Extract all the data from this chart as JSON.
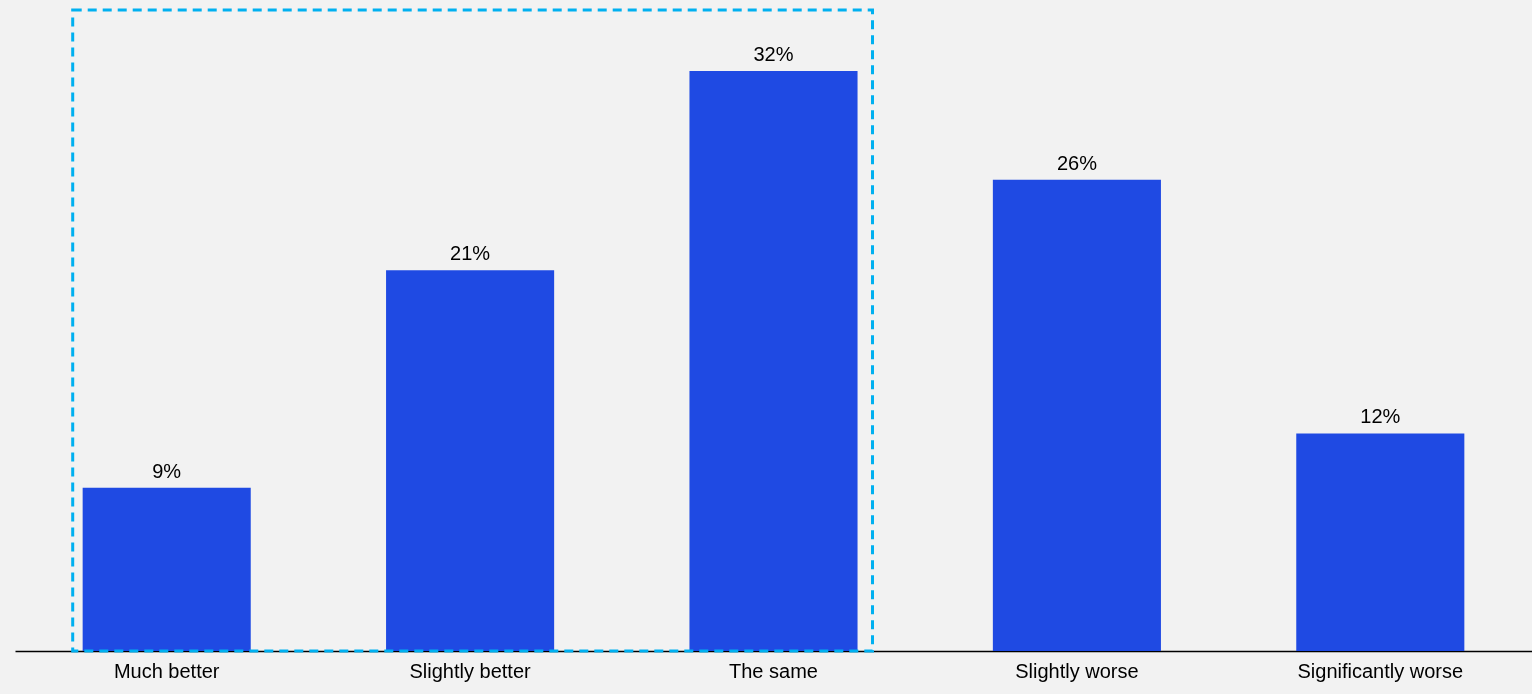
{
  "chart_data": {
    "type": "bar",
    "categories": [
      "Much better",
      "Slightly better",
      "The same",
      "Slightly worse",
      "Significantly worse"
    ],
    "values": [
      9,
      21,
      32,
      26,
      12
    ],
    "value_labels": [
      "9%",
      "21%",
      "32%",
      "26%",
      "12%"
    ],
    "color": "#1f4ae3",
    "grid": false
  }
}
